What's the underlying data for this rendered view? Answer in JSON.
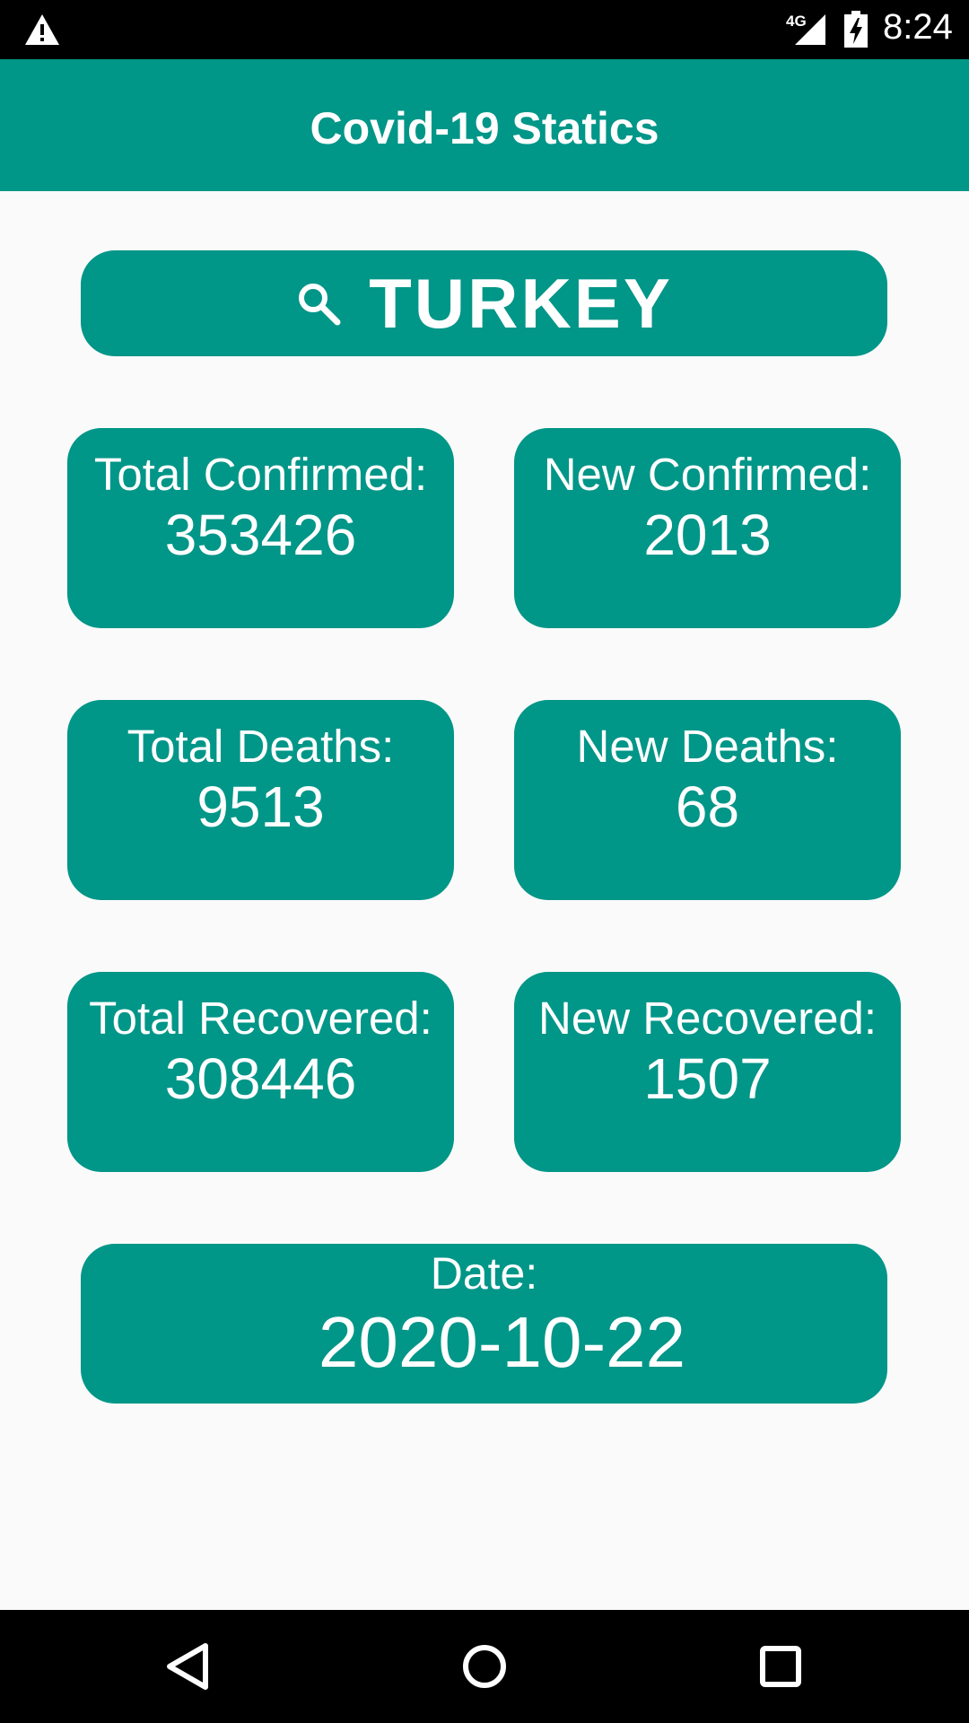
{
  "status_bar": {
    "network": "4G",
    "time": "8:24",
    "icons": [
      "warning-icon",
      "signal-icon",
      "battery-charging-icon"
    ]
  },
  "app_bar": {
    "title": "Covid-19 Statics"
  },
  "country_selector": {
    "icon": "search-icon",
    "label": "TURKEY"
  },
  "stats": [
    {
      "label": "Total Confirmed:",
      "value": "353426"
    },
    {
      "label": "New Confirmed:",
      "value": "2013"
    },
    {
      "label": "Total Deaths:",
      "value": "9513"
    },
    {
      "label": "New Deaths:",
      "value": "68"
    },
    {
      "label": "Total Recovered:",
      "value": "308446"
    },
    {
      "label": "New Recovered:",
      "value": "1507"
    }
  ],
  "date": {
    "label": "Date:",
    "value": "2020-10-22"
  },
  "nav_bar": {
    "icons": [
      "back-icon",
      "home-icon",
      "recents-icon"
    ]
  },
  "colors": {
    "primary": "#009688",
    "background": "#fafafa",
    "text_on_primary": "#ffffff",
    "system_bars": "#000000"
  }
}
